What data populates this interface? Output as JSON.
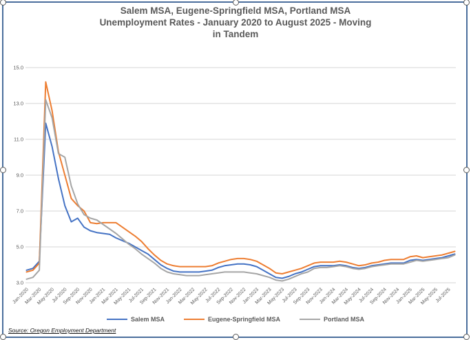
{
  "title": {
    "line1": "Salem MSA, Eugene-Springfield MSA, Portland MSA",
    "line2": "Unemployment Rates - January 2020 to August 2025 -  Moving",
    "line3": "in Tandem"
  },
  "source": "Source: Oregon Employment Department",
  "colors": {
    "salem": "#4472c4",
    "eugene_springfield": "#ed7d31",
    "portland": "#a5a5a5",
    "gridline": "#d6d6d6",
    "axis_text": "#595959",
    "title_text": "#595959",
    "selection_border": "#4a6e9c"
  },
  "chart_data": {
    "type": "line",
    "title": "Salem MSA, Eugene-Springfield MSA, Portland MSA Unemployment Rates - January 2020 to August 2025 - Moving in Tandem",
    "xlabel": "",
    "ylabel": "",
    "x_start": "Jan-2020",
    "x_end": "Aug-2025",
    "n_points": 68,
    "ylim": [
      3.0,
      15.0
    ],
    "y_ticks": [
      15.0,
      13.0,
      11.0,
      9.0,
      7.0,
      5.0,
      3.0
    ],
    "grid": "horizontal",
    "legend_position": "bottom",
    "x_tick_labels": [
      "Jan-2020",
      "Mar-2020",
      "May-2020",
      "Jul-2020",
      "Sep-2020",
      "Nov-2020",
      "Jan-2021",
      "Mar-2021",
      "May-2021",
      "Jul-2021",
      "Sep-2021",
      "Nov-2021",
      "Jan-2022",
      "Mar-2022",
      "May-2022",
      "Jul-2022",
      "Sep-2022",
      "Nov-2022",
      "Jan-2023",
      "Mar-2023",
      "May-2023",
      "Jul-2023",
      "Sep-2023",
      "Nov-2023",
      "Jan-2024",
      "Mar-2024",
      "May-2024",
      "Jul-2024",
      "Sep-2024",
      "Nov-2024",
      "Jan-2025",
      "Mar-2025",
      "May-2025",
      "Jul-2025"
    ],
    "series": [
      {
        "name": "Salem MSA",
        "color": "#4472c4",
        "values": [
          3.7,
          3.8,
          4.2,
          11.9,
          10.6,
          8.8,
          7.3,
          6.4,
          6.6,
          6.1,
          5.9,
          5.8,
          5.75,
          5.7,
          5.5,
          5.35,
          5.2,
          5.0,
          4.8,
          4.6,
          4.3,
          4.0,
          3.8,
          3.65,
          3.6,
          3.6,
          3.6,
          3.6,
          3.65,
          3.7,
          3.85,
          3.95,
          4.0,
          4.05,
          4.05,
          4.0,
          3.9,
          3.7,
          3.5,
          3.3,
          3.25,
          3.35,
          3.5,
          3.6,
          3.75,
          3.9,
          3.95,
          3.95,
          3.95,
          4.0,
          3.95,
          3.85,
          3.8,
          3.85,
          3.95,
          4.0,
          4.05,
          4.1,
          4.1,
          4.1,
          4.25,
          4.3,
          4.25,
          4.3,
          4.35,
          4.4,
          4.5,
          4.6
        ]
      },
      {
        "name": "Eugene-Springfield MSA",
        "color": "#ed7d31",
        "values": [
          3.6,
          3.7,
          4.1,
          14.2,
          12.6,
          10.3,
          9.0,
          7.7,
          7.3,
          7.0,
          6.35,
          6.3,
          6.35,
          6.35,
          6.35,
          6.1,
          5.85,
          5.6,
          5.3,
          4.9,
          4.55,
          4.25,
          4.05,
          3.95,
          3.9,
          3.9,
          3.9,
          3.9,
          3.9,
          3.95,
          4.1,
          4.2,
          4.3,
          4.35,
          4.35,
          4.3,
          4.2,
          4.0,
          3.8,
          3.55,
          3.5,
          3.6,
          3.7,
          3.8,
          3.95,
          4.1,
          4.15,
          4.15,
          4.15,
          4.2,
          4.15,
          4.05,
          3.95,
          4.0,
          4.1,
          4.15,
          4.25,
          4.3,
          4.3,
          4.3,
          4.45,
          4.5,
          4.4,
          4.45,
          4.5,
          4.55,
          4.65,
          4.75
        ]
      },
      {
        "name": "Portland MSA",
        "color": "#a5a5a5",
        "values": [
          3.2,
          3.3,
          3.7,
          13.2,
          12.2,
          10.2,
          10.0,
          8.4,
          7.4,
          6.8,
          6.6,
          6.5,
          6.25,
          6.0,
          5.75,
          5.45,
          5.15,
          4.9,
          4.6,
          4.35,
          4.1,
          3.8,
          3.6,
          3.5,
          3.45,
          3.4,
          3.4,
          3.4,
          3.45,
          3.5,
          3.55,
          3.6,
          3.6,
          3.6,
          3.6,
          3.55,
          3.5,
          3.4,
          3.3,
          3.15,
          3.1,
          3.2,
          3.35,
          3.5,
          3.6,
          3.8,
          3.85,
          3.85,
          3.9,
          3.95,
          3.9,
          3.8,
          3.75,
          3.8,
          3.9,
          3.95,
          4.0,
          4.05,
          4.05,
          4.05,
          4.15,
          4.25,
          4.2,
          4.25,
          4.3,
          4.35,
          4.4,
          4.55
        ]
      }
    ]
  }
}
